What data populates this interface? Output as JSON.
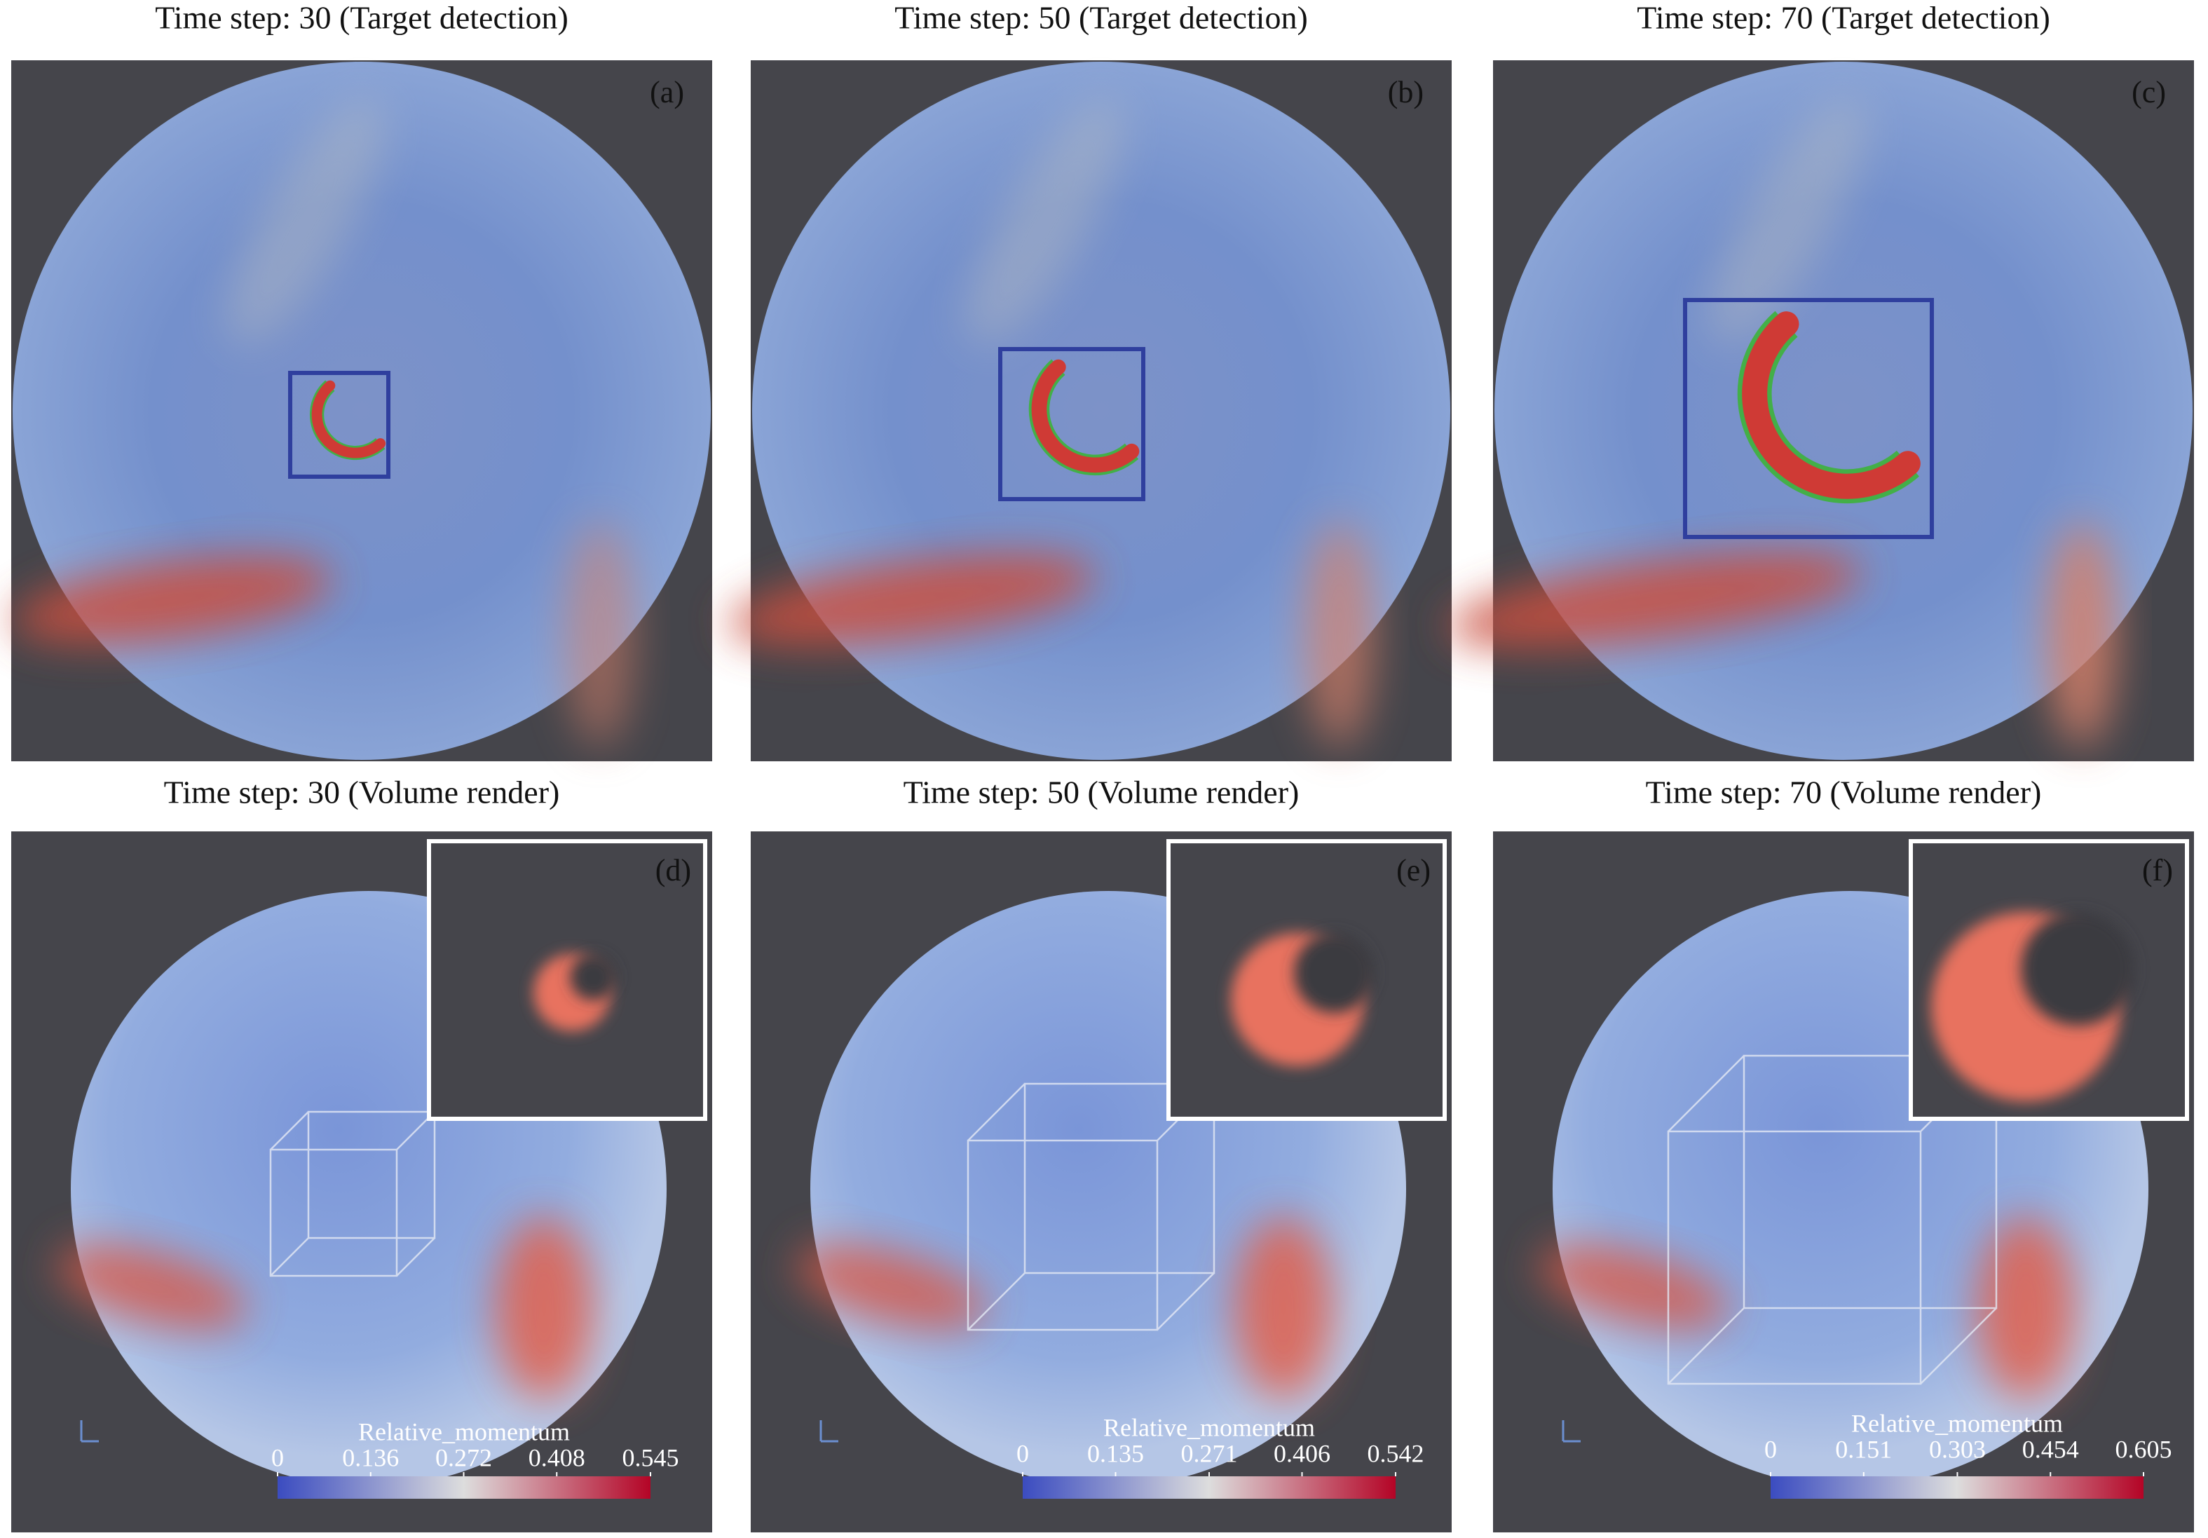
{
  "panels": [
    {
      "title": "Time step: 30 (Target detection)",
      "label": "(a)"
    },
    {
      "title": "Time step: 50 (Target detection)",
      "label": "(b)"
    },
    {
      "title": "Time step: 70 (Target detection)",
      "label": "(c)"
    },
    {
      "title": "Time step: 30 (Volume render)",
      "label": "(d)",
      "colorbar": {
        "title": "Relative_momentum",
        "ticks": [
          0,
          0.136,
          0.272,
          0.408,
          0.545
        ]
      }
    },
    {
      "title": "Time step: 50 (Volume render)",
      "label": "(e)",
      "colorbar": {
        "title": "Relative_momentum",
        "ticks": [
          0,
          0.135,
          0.271,
          0.406,
          0.542
        ]
      }
    },
    {
      "title": "Time step: 70 (Volume render)",
      "label": "(f)",
      "colorbar": {
        "title": "Relative_momentum",
        "ticks": [
          0,
          0.151,
          0.303,
          0.454,
          0.605
        ]
      }
    }
  ]
}
